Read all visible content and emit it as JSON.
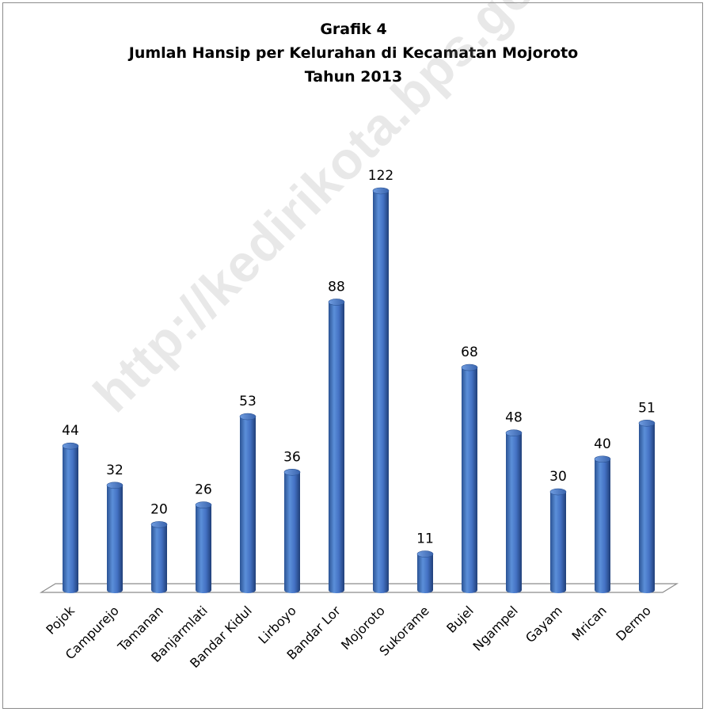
{
  "chart_data": {
    "type": "bar",
    "title": [
      "Grafik 4",
      "Jumlah Hansip per Kelurahan di Kecamatan Mojoroto",
      "Tahun 2013"
    ],
    "categories": [
      "Pojok",
      "Campurejo",
      "Tamanan",
      "Banjarmlati",
      "Bandar Kidul",
      "Lirboyo",
      "Bandar Lor",
      "Mojoroto",
      "Sukorame",
      "Bujel",
      "Ngampel",
      "Gayam",
      "Mrican",
      "Dermo"
    ],
    "values": [
      44,
      32,
      20,
      26,
      53,
      36,
      88,
      122,
      11,
      68,
      48,
      30,
      40,
      51
    ],
    "data_labels": [
      "44",
      "32",
      "20",
      "26",
      "53",
      "36",
      "88",
      "122",
      "11",
      "68",
      "48",
      "30",
      "40",
      "51"
    ],
    "ylim": [
      0,
      122
    ],
    "grid": false,
    "legend": "none",
    "bar_color": "#4472c4",
    "bar_dark_color": "#1f3e7a"
  },
  "watermark": "http://kedirikota.bps.go.id"
}
